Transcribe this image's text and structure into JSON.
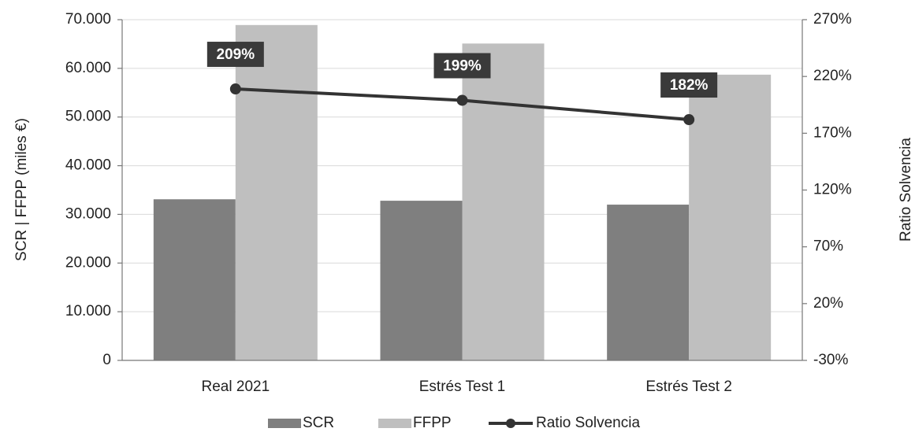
{
  "chart_data": {
    "type": "bar",
    "categories": [
      "Real 2021",
      "Estrés Test 1",
      "Estrés Test 2"
    ],
    "ylabel": "SCR | FFPP (miles €)",
    "y2label": "Ratio Solvencia",
    "ylim": [
      0,
      70000
    ],
    "yticks": [
      0,
      {
        "value": 10000,
        "label": "10.000"
      },
      {
        "value": 20000,
        "label": "20.000"
      },
      {
        "value": 30000,
        "label": "30.000"
      },
      {
        "value": 40000,
        "label": "40.000"
      },
      {
        "value": 50000,
        "label": "50.000"
      },
      {
        "value": 60000,
        "label": "60.000"
      },
      {
        "value": 70000,
        "label": "70.000"
      }
    ],
    "y2lim": [
      -30,
      270
    ],
    "y2ticks": [
      {
        "value": -30,
        "label": "-30%"
      },
      {
        "value": 20,
        "label": "20%"
      },
      {
        "value": 70,
        "label": "70%"
      },
      {
        "value": 120,
        "label": "120%"
      },
      {
        "value": 170,
        "label": "170%"
      },
      {
        "value": 220,
        "label": "220%"
      },
      {
        "value": 270,
        "label": "270%"
      }
    ],
    "grid": true,
    "legend": "bottom",
    "series": [
      {
        "name": "SCR",
        "type": "bar",
        "color": "#7f7f7f",
        "values": [
          33100,
          32800,
          32000
        ]
      },
      {
        "name": "FFPP",
        "type": "bar",
        "color": "#bfbfbf",
        "values": [
          68900,
          65100,
          58700
        ]
      },
      {
        "name": "Ratio Solvencia",
        "type": "line",
        "axis": "y2",
        "color": "#333333",
        "values": [
          209,
          199,
          182
        ],
        "value_labels": [
          "209%",
          "199%",
          "182%"
        ]
      }
    ]
  }
}
